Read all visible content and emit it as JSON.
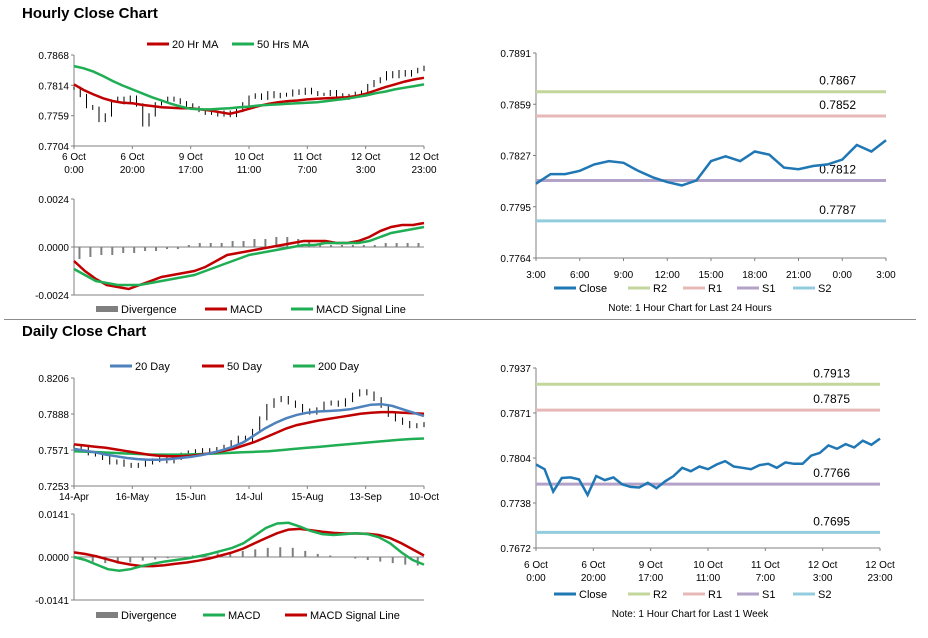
{
  "titles": {
    "hourly": "Hourly Close Chart",
    "daily": "Daily Close Chart"
  },
  "notes": {
    "hourly_right": "Note: 1 Hour Chart for Last 24 Hours",
    "daily_right": "Note: 1 Hour Chart for Last 1 Week"
  },
  "colors": {
    "red": "#c00000",
    "green": "#1fae54",
    "blue": "#4f81bd",
    "price": "#000000",
    "divergence": "#7f7f7f",
    "close": "#1f77b4",
    "r2": "#c3d69b",
    "r1": "#e6b9b8",
    "s1": "#b3a2c7",
    "s2": "#93cddd"
  },
  "chart_data": [
    {
      "id": "hourly_price",
      "type": "line",
      "x_ticks": [
        "6 Oct\n0:00",
        "6 Oct\n20:00",
        "9 Oct\n17:00",
        "10 Oct\n11:00",
        "11 Oct\n7:00",
        "12 Oct\n3:00",
        "12 Oct\n23:00"
      ],
      "y_ticks": [
        "0.7868",
        "0.7814",
        "0.7759",
        "0.7704"
      ],
      "ylim": [
        0.7704,
        0.7868
      ],
      "legend": [
        "20 Hr MA",
        "50 Hrs MA"
      ],
      "series": [
        {
          "name": "price",
          "values": [
            0.7808,
            0.7795,
            0.7775,
            0.7772,
            0.775,
            0.776,
            0.7785,
            0.779,
            0.7782,
            0.7792,
            0.7778,
            0.7742,
            0.776,
            0.778,
            0.7785,
            0.779,
            0.7787,
            0.7782,
            0.7778,
            0.7773,
            0.7768,
            0.7763,
            0.7765,
            0.776,
            0.7765,
            0.7759,
            0.7768,
            0.778,
            0.7792,
            0.7796,
            0.779,
            0.78,
            0.7793,
            0.7797,
            0.7796,
            0.7803,
            0.7799,
            0.7806,
            0.78,
            0.7797,
            0.7797,
            0.7802,
            0.7796,
            0.779,
            0.7795,
            0.7799,
            0.7801,
            0.7813,
            0.782,
            0.7825,
            0.7836,
            0.7829,
            0.7838,
            0.7832,
            0.7838,
            0.7842,
            0.7846
          ]
        },
        {
          "name": "20 Hr MA",
          "values": [
            0.7815,
            0.7805,
            0.7797,
            0.779,
            0.7785,
            0.7782,
            0.7781,
            0.7778,
            0.7776,
            0.7774,
            0.7773,
            0.7772,
            0.7772,
            0.777,
            0.7768,
            0.7765,
            0.7762,
            0.7766,
            0.7771,
            0.7776,
            0.778,
            0.7783,
            0.7785,
            0.7786,
            0.7788,
            0.7789,
            0.779,
            0.7791,
            0.7792,
            0.7794,
            0.7798,
            0.7804,
            0.781,
            0.7815,
            0.782,
            0.7824,
            0.7827
          ]
        },
        {
          "name": "50 Hrs MA",
          "values": [
            0.7848,
            0.7844,
            0.7838,
            0.783,
            0.7821,
            0.7813,
            0.7806,
            0.7799,
            0.7792,
            0.7786,
            0.778,
            0.7775,
            0.7771,
            0.777,
            0.777,
            0.7771,
            0.7772,
            0.7774,
            0.7775,
            0.7777,
            0.7778,
            0.7779,
            0.778,
            0.7781,
            0.7782,
            0.7783,
            0.7785,
            0.7787,
            0.7789,
            0.7792,
            0.7795,
            0.7799,
            0.7802,
            0.7806,
            0.7809,
            0.7812,
            0.7815
          ]
        }
      ]
    },
    {
      "id": "hourly_macd",
      "type": "line",
      "y_ticks": [
        "0.0024",
        "0.0000",
        "-0.0024"
      ],
      "ylim": [
        -0.0024,
        0.0024
      ],
      "legend": [
        "Divergence",
        "MACD",
        "MACD Signal Line"
      ],
      "series": [
        {
          "name": "MACD",
          "values": [
            -0.0007,
            -0.0012,
            -0.0016,
            -0.0019,
            -0.002,
            -0.0021,
            -0.0019,
            -0.0017,
            -0.0015,
            -0.0014,
            -0.0013,
            -0.0012,
            -0.001,
            -0.0007,
            -0.0004,
            -0.0003,
            -0.0002,
            -0.0001,
            0.0,
            0.0001,
            0.0002,
            0.0003,
            0.0003,
            0.0003,
            0.0002,
            0.0002,
            0.0003,
            0.0005,
            0.0008,
            0.001,
            0.0011,
            0.0011,
            0.0012
          ]
        },
        {
          "name": "MACD Signal Line",
          "values": [
            -0.0011,
            -0.0014,
            -0.0017,
            -0.0018,
            -0.0019,
            -0.0019,
            -0.0019,
            -0.0018,
            -0.0017,
            -0.0016,
            -0.0015,
            -0.0014,
            -0.0012,
            -0.001,
            -0.0008,
            -0.0006,
            -0.0004,
            -0.0003,
            -0.0002,
            -0.0001,
            0.0,
            0.0001,
            0.0001,
            0.0002,
            0.0002,
            0.0002,
            0.0002,
            0.0003,
            0.0005,
            0.0007,
            0.0008,
            0.0009,
            0.001
          ]
        },
        {
          "name": "Divergence",
          "values": [
            -0.0006,
            -0.0005,
            -0.0004,
            -0.0004,
            -0.0003,
            -0.0003,
            -0.0002,
            -0.0002,
            -0.0001,
            -0.0001,
            0.0001,
            0.0002,
            0.0002,
            0.0002,
            0.0003,
            0.0003,
            0.0004,
            0.0004,
            0.0005,
            0.0005,
            0.0004,
            0.0003,
            0.0002,
            0.0001,
            0.0001,
            0.0001,
            0.0001,
            0.0001,
            0.0002,
            0.0002,
            0.0002,
            0.0002
          ]
        }
      ]
    },
    {
      "id": "hourly_pivot",
      "type": "line",
      "x_ticks": [
        "3:00",
        "6:00",
        "9:00",
        "12:00",
        "15:00",
        "18:00",
        "21:00",
        "0:00",
        "3:00"
      ],
      "y_ticks": [
        "0.7891",
        "0.7859",
        "0.7827",
        "0.7795",
        "0.7764"
      ],
      "ylim": [
        0.7764,
        0.7891
      ],
      "levels": [
        {
          "name": "R2",
          "value": 0.7867,
          "label": "0.7867"
        },
        {
          "name": "R1",
          "value": 0.7852,
          "label": "0.7852"
        },
        {
          "name": "S1",
          "value": 0.7812,
          "label": "0.7812"
        },
        {
          "name": "S2",
          "value": 0.7787,
          "label": "0.7787"
        }
      ],
      "legend": [
        "Close",
        "R2",
        "R1",
        "S1",
        "S2"
      ],
      "series": [
        {
          "name": "Close",
          "values": [
            0.781,
            0.7816,
            0.7816,
            0.7818,
            0.7822,
            0.7824,
            0.7823,
            0.7818,
            0.7814,
            0.7811,
            0.7809,
            0.7812,
            0.7824,
            0.7827,
            0.7824,
            0.783,
            0.7828,
            0.782,
            0.7819,
            0.7821,
            0.7822,
            0.7825,
            0.7834,
            0.783,
            0.7837
          ]
        }
      ]
    },
    {
      "id": "daily_price",
      "type": "line",
      "x_ticks": [
        "14-Apr",
        "16-May",
        "15-Jun",
        "14-Jul",
        "15-Aug",
        "13-Sep",
        "10-Oct"
      ],
      "y_ticks": [
        "0.8206",
        "0.7888",
        "0.7571",
        "0.7253"
      ],
      "ylim": [
        0.7253,
        0.8206
      ],
      "legend": [
        "20 Day",
        "50 Day",
        "200 Day"
      ],
      "series": [
        {
          "name": "price",
          "values": [
            0.76,
            0.758,
            0.754,
            0.753,
            0.75,
            0.746,
            0.747,
            0.744,
            0.743,
            0.744,
            0.746,
            0.748,
            0.749,
            0.747,
            0.75,
            0.753,
            0.755,
            0.756,
            0.757,
            0.756,
            0.758,
            0.76,
            0.764,
            0.768,
            0.766,
            0.774,
            0.785,
            0.796,
            0.801,
            0.803,
            0.799,
            0.796,
            0.792,
            0.79,
            0.793,
            0.798,
            0.799,
            0.797,
            0.801,
            0.806,
            0.809,
            0.807,
            0.802,
            0.796,
            0.788,
            0.784,
            0.781,
            0.778,
            0.779,
            0.78
          ]
        },
        {
          "name": "20 Day",
          "values": [
            0.758,
            0.7565,
            0.755,
            0.753,
            0.7515,
            0.75,
            0.749,
            0.7485,
            0.7485,
            0.749,
            0.75,
            0.751,
            0.7525,
            0.7545,
            0.757,
            0.76,
            0.764,
            0.77,
            0.776,
            0.781,
            0.785,
            0.788,
            0.79,
            0.791,
            0.7915,
            0.792,
            0.793,
            0.795,
            0.797,
            0.7975,
            0.796,
            0.793,
            0.79,
            0.787
          ]
        },
        {
          "name": "50 Day",
          "values": [
            0.762,
            0.761,
            0.76,
            0.759,
            0.7575,
            0.756,
            0.7545,
            0.753,
            0.752,
            0.7515,
            0.7515,
            0.752,
            0.753,
            0.7545,
            0.756,
            0.758,
            0.761,
            0.764,
            0.768,
            0.772,
            0.776,
            0.779,
            0.781,
            0.783,
            0.7845,
            0.786,
            0.7875,
            0.789,
            0.79,
            0.7905,
            0.7905,
            0.79,
            0.7895,
            0.789
          ]
        },
        {
          "name": "200 Day",
          "values": [
            0.756,
            0.7555,
            0.755,
            0.7545,
            0.754,
            0.7535,
            0.753,
            0.753,
            0.753,
            0.7532,
            0.7535,
            0.754,
            0.7545,
            0.755,
            0.7555,
            0.756,
            0.757,
            0.758,
            0.759,
            0.76,
            0.761,
            0.762,
            0.763,
            0.764,
            0.765,
            0.766,
            0.7668,
            0.7672
          ]
        }
      ]
    },
    {
      "id": "daily_macd",
      "type": "line",
      "y_ticks": [
        "0.0141",
        "0.0000",
        "-0.0141"
      ],
      "ylim": [
        -0.0141,
        0.0141
      ],
      "legend": [
        "Divergence",
        "MACD",
        "MACD Signal Line"
      ],
      "series": [
        {
          "name": "MACD",
          "values": [
            0.0,
            -0.001,
            -0.0025,
            -0.004,
            -0.0045,
            -0.004,
            -0.003,
            -0.0022,
            -0.0015,
            -0.001,
            -0.0005,
            0.0002,
            0.001,
            0.002,
            0.003,
            0.0045,
            0.007,
            0.0095,
            0.011,
            0.0112,
            0.01,
            0.0085,
            0.0075,
            0.0072,
            0.0075,
            0.0078,
            0.0075,
            0.0065,
            0.0045,
            0.0015,
            -0.001,
            -0.0025
          ]
        },
        {
          "name": "MACD Signal Line",
          "values": [
            0.0015,
            0.001,
            0.0002,
            -0.0008,
            -0.0018,
            -0.0025,
            -0.003,
            -0.003,
            -0.0027,
            -0.0022,
            -0.0018,
            -0.0012,
            -0.0005,
            0.0005,
            0.0015,
            0.0028,
            0.0045,
            0.0062,
            0.0078,
            0.009,
            0.0092,
            0.0088,
            0.0083,
            0.0079,
            0.0077,
            0.0077,
            0.0076,
            0.0072,
            0.0062,
            0.0045,
            0.0025,
            0.0005
          ]
        },
        {
          "name": "Divergence",
          "values": [
            -0.001,
            -0.0015,
            -0.002,
            -0.0022,
            -0.0018,
            -0.0012,
            -0.0008,
            -0.0004,
            0.0002,
            0.0005,
            0.0008,
            0.0012,
            0.0016,
            0.002,
            0.0025,
            0.003,
            0.0032,
            0.003,
            0.002,
            0.001,
            0.0005,
            0.0,
            -0.0005,
            -0.001,
            -0.0015,
            -0.002,
            -0.0025,
            -0.0028
          ]
        }
      ]
    },
    {
      "id": "daily_pivot",
      "type": "line",
      "x_ticks": [
        "6 Oct\n0:00",
        "6 Oct\n20:00",
        "9 Oct\n17:00",
        "10 Oct\n11:00",
        "11 Oct\n7:00",
        "12 Oct\n3:00",
        "12 Oct\n23:00"
      ],
      "y_ticks": [
        "0.7937",
        "0.7871",
        "0.7804",
        "0.7738",
        "0.7672"
      ],
      "ylim": [
        0.7672,
        0.7937
      ],
      "levels": [
        {
          "name": "R2",
          "value": 0.7913,
          "label": "0.7913"
        },
        {
          "name": "R1",
          "value": 0.7875,
          "label": "0.7875"
        },
        {
          "name": "S1",
          "value": 0.7766,
          "label": "0.7766"
        },
        {
          "name": "S2",
          "value": 0.7695,
          "label": "0.7695"
        }
      ],
      "legend": [
        "Close",
        "R2",
        "R1",
        "S1",
        "S2"
      ],
      "series": [
        {
          "name": "Close",
          "values": [
            0.7795,
            0.7788,
            0.7755,
            0.7775,
            0.7776,
            0.7773,
            0.775,
            0.7778,
            0.7772,
            0.7776,
            0.7766,
            0.7762,
            0.7761,
            0.7768,
            0.776,
            0.777,
            0.7778,
            0.779,
            0.7785,
            0.7792,
            0.7788,
            0.7795,
            0.78,
            0.7792,
            0.779,
            0.7788,
            0.7794,
            0.7796,
            0.779,
            0.7798,
            0.7796,
            0.7796,
            0.7808,
            0.7812,
            0.7823,
            0.7818,
            0.7825,
            0.782,
            0.783,
            0.7824,
            0.7833
          ]
        }
      ]
    }
  ]
}
